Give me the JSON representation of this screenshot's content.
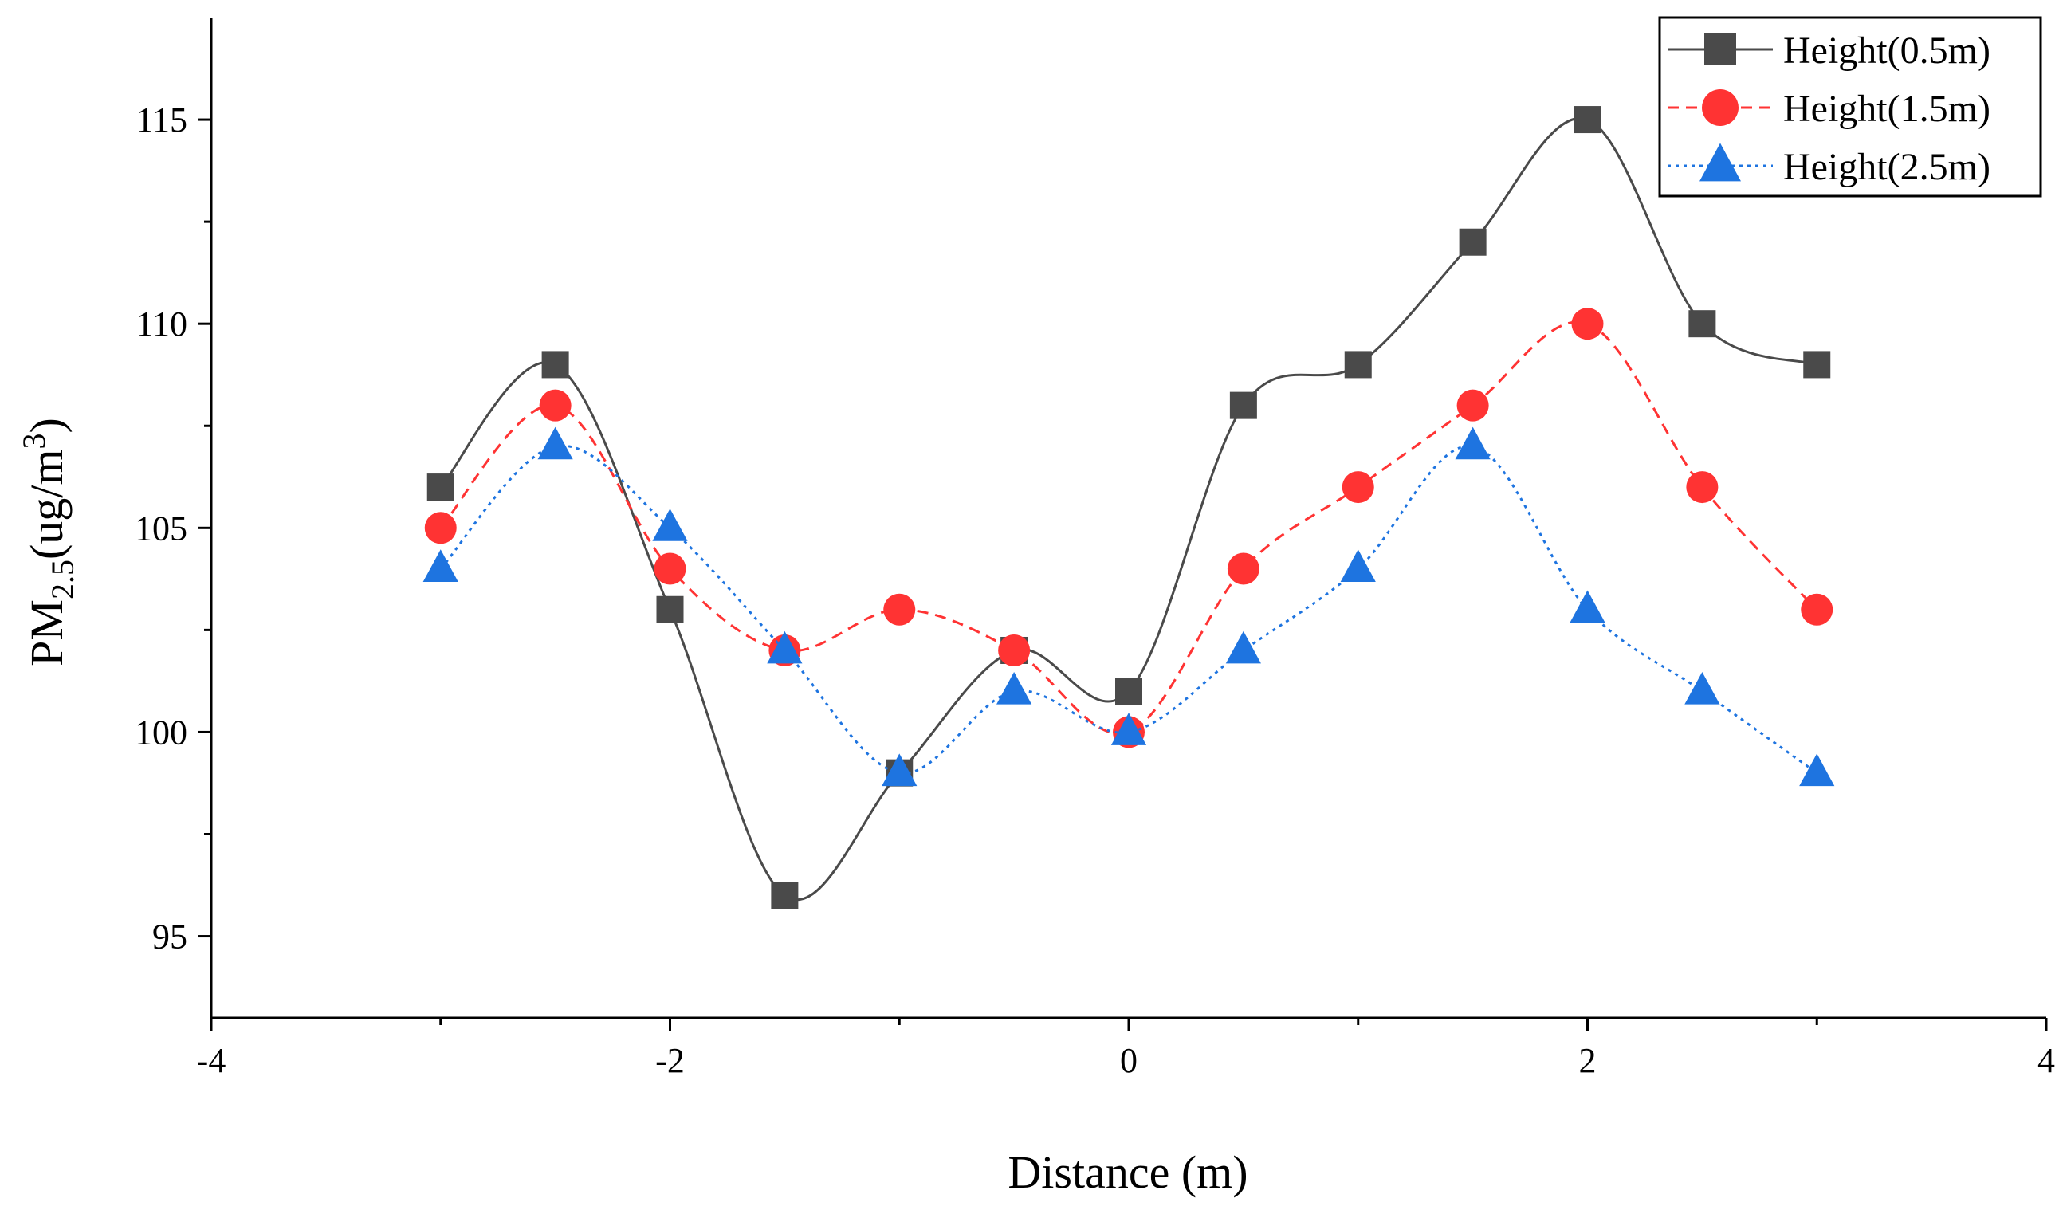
{
  "chart_data": {
    "type": "line",
    "title": "",
    "xlabel": "Distance (m)",
    "ylabel_parts": {
      "base": "PM",
      "sub": "2.5",
      "unit_open": "(ug/m",
      "sup": "3",
      "unit_close": ")"
    },
    "xlim": [
      -4,
      4
    ],
    "ylim": [
      93,
      117.5
    ],
    "xticks": [
      "-4",
      "-2",
      "0",
      "2",
      "4"
    ],
    "xtick_values": [
      -4,
      -2,
      0,
      2,
      4
    ],
    "yticks": [
      "95",
      "100",
      "105",
      "110",
      "115"
    ],
    "ytick_values": [
      95,
      100,
      105,
      110,
      115
    ],
    "grid": false,
    "legend_position": "top-right",
    "x": [
      -3,
      -2.5,
      -2,
      -1.5,
      -1,
      -0.5,
      0,
      0.5,
      1,
      1.5,
      2,
      2.5,
      3
    ],
    "series": [
      {
        "name": "Height(0.5m)",
        "color": "#4a4a4a",
        "marker": "square",
        "line": "solid",
        "values": [
          106,
          109,
          103,
          96,
          99,
          102,
          101,
          108,
          109,
          112,
          115,
          110,
          109
        ]
      },
      {
        "name": "Height(1.5m)",
        "color": "#ff3333",
        "marker": "circle",
        "line": "dashed",
        "values": [
          105,
          108,
          104,
          102,
          103,
          102,
          100,
          104,
          106,
          108,
          110,
          106,
          103
        ]
      },
      {
        "name": "Height(2.5m)",
        "color": "#1e74e0",
        "marker": "triangle",
        "line": "dotted",
        "values": [
          104,
          107,
          105,
          102,
          99,
          101,
          100,
          102,
          104,
          107,
          103,
          101,
          99
        ]
      }
    ]
  }
}
